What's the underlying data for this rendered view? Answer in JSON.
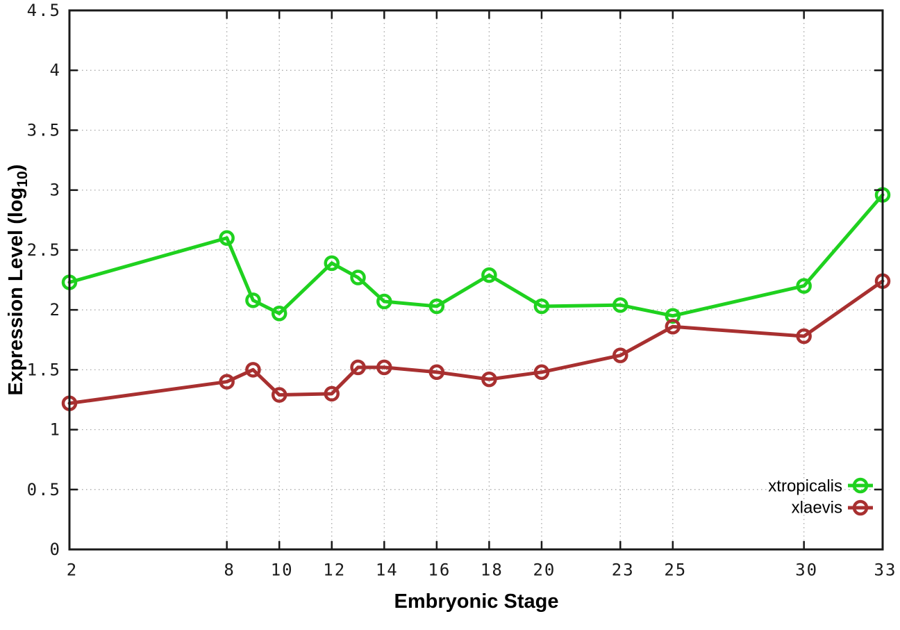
{
  "chart_data": {
    "type": "line",
    "title": "",
    "xlabel": "Embryonic Stage",
    "ylabel": "Expression Level (log10)",
    "ylabel_parts": {
      "pre": "Expression Level (log",
      "sub": "10",
      "post": ")"
    },
    "xlim": [
      2,
      33
    ],
    "ylim": [
      0,
      4.5
    ],
    "x_ticks": [
      2,
      8,
      10,
      12,
      14,
      16,
      18,
      20,
      23,
      25,
      30,
      33
    ],
    "x_tick_labels": [
      "2",
      "8",
      "10",
      "12",
      "14",
      "16",
      "18",
      "20",
      "23",
      "25",
      "30",
      "33"
    ],
    "y_ticks": [
      0,
      0.5,
      1,
      1.5,
      2,
      2.5,
      3,
      3.5,
      4,
      4.5
    ],
    "y_tick_labels": [
      "0",
      "0.5",
      "1",
      "1.5",
      "2",
      "2.5",
      "3",
      "3.5",
      "4",
      "4.5"
    ],
    "grid": true,
    "legend_position": "bottom-right-inside",
    "x": [
      2,
      8,
      9,
      10,
      12,
      13,
      14,
      16,
      18,
      20,
      23,
      25,
      30,
      33
    ],
    "series": [
      {
        "name": "xtropicalis",
        "color": "#1fd11f",
        "values": [
          2.23,
          2.6,
          2.08,
          1.97,
          2.39,
          2.27,
          2.07,
          2.03,
          2.29,
          2.03,
          2.04,
          1.95,
          2.2,
          2.96
        ]
      },
      {
        "name": "xlaevis",
        "color": "#a83030",
        "values": [
          1.22,
          1.4,
          1.5,
          1.29,
          1.3,
          1.52,
          1.52,
          1.48,
          1.42,
          1.48,
          1.62,
          1.86,
          1.78,
          2.24
        ]
      }
    ],
    "axis_color": "#1a1a1a",
    "grid_color": "#a0a0a0"
  }
}
